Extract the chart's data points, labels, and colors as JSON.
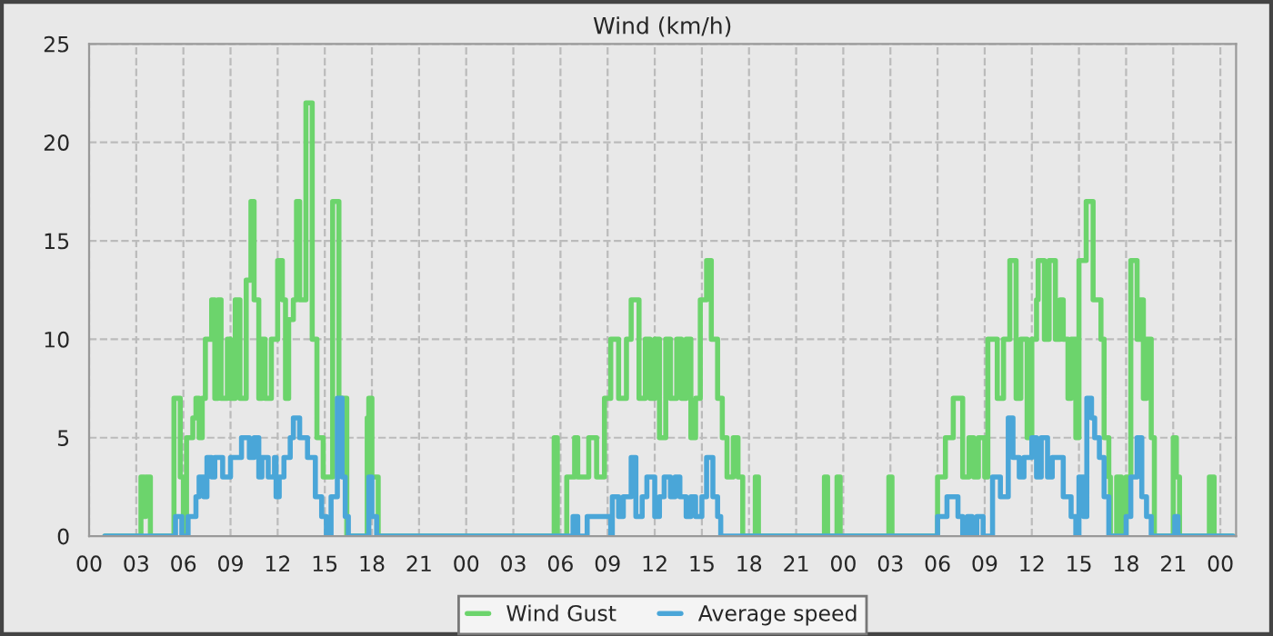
{
  "chart_data": {
    "type": "step",
    "title": "Wind (km/h)",
    "xlim": [
      0,
      73
    ],
    "ylim": [
      0,
      25
    ],
    "yticks": [
      0,
      5,
      10,
      15,
      20,
      25
    ],
    "xticks": [
      {
        "value": 0,
        "label": "00"
      },
      {
        "value": 3,
        "label": "03"
      },
      {
        "value": 6,
        "label": "06"
      },
      {
        "value": 9,
        "label": "09"
      },
      {
        "value": 12,
        "label": "12"
      },
      {
        "value": 15,
        "label": "15"
      },
      {
        "value": 18,
        "label": "18"
      },
      {
        "value": 21,
        "label": "21"
      },
      {
        "value": 24,
        "label": "00"
      },
      {
        "value": 27,
        "label": "03"
      },
      {
        "value": 30,
        "label": "06"
      },
      {
        "value": 33,
        "label": "09"
      },
      {
        "value": 36,
        "label": "12"
      },
      {
        "value": 39,
        "label": "15"
      },
      {
        "value": 42,
        "label": "18"
      },
      {
        "value": 45,
        "label": "21"
      },
      {
        "value": 48,
        "label": "00"
      },
      {
        "value": 51,
        "label": "03"
      },
      {
        "value": 54,
        "label": "06"
      },
      {
        "value": 57,
        "label": "09"
      },
      {
        "value": 60,
        "label": "12"
      },
      {
        "value": 63,
        "label": "15"
      },
      {
        "value": 66,
        "label": "18"
      },
      {
        "value": 69,
        "label": "21"
      },
      {
        "value": 72,
        "label": "00"
      }
    ],
    "grid": true,
    "legend": "bottom",
    "line_style": "solid",
    "marker": "none",
    "series": [
      {
        "name": "Wind Gust",
        "color": "#6cd46c",
        "x": [
          1,
          3.3,
          3.5,
          3.6,
          3.9,
          5.4,
          5.8,
          6.0,
          6.2,
          6.6,
          6.8,
          7.0,
          7.2,
          7.4,
          7.8,
          8.0,
          8.2,
          8.4,
          8.8,
          9.0,
          9.3,
          9.6,
          10.0,
          10.3,
          10.5,
          10.8,
          11.0,
          11.2,
          11.6,
          12.0,
          12.3,
          12.5,
          12.7,
          13.0,
          13.2,
          13.4,
          13.8,
          14.2,
          14.5,
          14.9,
          15.05,
          15.5,
          15.9,
          16.4,
          17.7,
          17.8,
          18.0,
          18.4,
          29.6,
          29.8,
          30.4,
          30.9,
          31.1,
          31.8,
          32.3,
          32.8,
          33.2,
          33.7,
          34.2,
          34.5,
          35.0,
          35.4,
          35.7,
          36.0,
          36.3,
          36.7,
          37.0,
          37.4,
          37.7,
          38.0,
          38.3,
          38.6,
          38.9,
          39.3,
          39.6,
          40.0,
          40.3,
          40.6,
          41.0,
          41.3,
          41.6,
          42.4,
          42.6,
          46.8,
          47.0,
          47.6,
          47.8,
          50.9,
          51.1,
          54.0,
          54.5,
          55.0,
          55.6,
          56.0,
          56.3,
          56.6,
          57.0,
          57.2,
          57.8,
          58.2,
          58.6,
          59.0,
          59.3,
          59.7,
          60.0,
          60.3,
          60.4,
          60.8,
          61.1,
          61.5,
          61.8,
          62.0,
          62.3,
          62.5,
          62.8,
          63.0,
          63.46,
          63.9,
          64.4,
          64.6,
          64.9,
          65.0,
          65.2,
          65.4,
          65.7,
          66.0,
          66.3,
          66.7,
          66.9,
          67.1,
          67.3,
          67.6,
          67.8,
          69.0,
          69.2,
          69.4,
          71.3,
          71.6,
          72.8
        ],
        "values": [
          0,
          3,
          1,
          3,
          0,
          7,
          3,
          0,
          5,
          6,
          7,
          5,
          7,
          10,
          12,
          7,
          12,
          7,
          10,
          7,
          12,
          7,
          13,
          17,
          12,
          7,
          10,
          7,
          10,
          14,
          12,
          7,
          11,
          12,
          17,
          12,
          22,
          10,
          5,
          3,
          3,
          17,
          7,
          0,
          6,
          7,
          3,
          0,
          5,
          0,
          3,
          5,
          3,
          5,
          3,
          7,
          10,
          7,
          10,
          12,
          7,
          10,
          7,
          10,
          5,
          10,
          7,
          10,
          7,
          10,
          5,
          7,
          12,
          14,
          10,
          7,
          5,
          3,
          5,
          3,
          0,
          3,
          0,
          3,
          0,
          3,
          0,
          3,
          0,
          3,
          5,
          7,
          3,
          5,
          3,
          5,
          3,
          10,
          7,
          10,
          14,
          7,
          10,
          5,
          10,
          12,
          14,
          10,
          14,
          10,
          12,
          10,
          7,
          10,
          5,
          14,
          17,
          12,
          10,
          5,
          3,
          0,
          0,
          3,
          0,
          3,
          14,
          10,
          12,
          7,
          10,
          5,
          0,
          5,
          3,
          0,
          3,
          0,
          0
        ]
      },
      {
        "name": "Average speed",
        "color": "#4aa6d8",
        "x": [
          1,
          5.5,
          5.9,
          6.3,
          6.8,
          7.0,
          7.3,
          7.5,
          7.8,
          8.0,
          8.5,
          9.0,
          9.7,
          10.2,
          10.5,
          10.8,
          11.0,
          11.4,
          11.8,
          11.9,
          12.1,
          12.4,
          12.8,
          13.0,
          13.4,
          13.9,
          14.4,
          14.8,
          15.1,
          15.4,
          15.8,
          16.1,
          16.3,
          16.5,
          17.8,
          18.0,
          18.3,
          30.8,
          31.1,
          31.7,
          33.2,
          33.3,
          33.7,
          34.0,
          34.5,
          34.8,
          35.2,
          35.5,
          36.0,
          36.3,
          36.6,
          37.0,
          37.3,
          37.6,
          38.0,
          38.3,
          38.6,
          39.0,
          39.3,
          39.7,
          40.0,
          40.2,
          54.0,
          54.6,
          55.3,
          55.6,
          55.9,
          56.2,
          56.5,
          56.9,
          57.5,
          58.0,
          58.5,
          58.8,
          59.2,
          59.5,
          60.0,
          60.3,
          60.6,
          61.0,
          61.3,
          62.0,
          62.5,
          62.8,
          63.0,
          63.3,
          63.5,
          63.8,
          64.0,
          64.3,
          64.6,
          64.9,
          66.0,
          66.3,
          66.7,
          67.0,
          67.3,
          67.6,
          69.1,
          69.3,
          72.8
        ],
        "values": [
          0,
          1,
          0,
          1,
          2,
          3,
          2,
          4,
          3,
          4,
          3,
          4,
          5,
          4,
          5,
          3,
          4,
          3,
          4,
          2,
          3,
          4,
          5,
          6,
          5,
          4,
          2,
          1,
          0,
          2,
          7,
          3,
          1,
          0,
          3,
          1,
          0,
          1,
          0,
          1,
          0,
          2,
          1,
          2,
          4,
          1,
          2,
          3,
          1,
          2,
          3,
          2,
          3,
          2,
          1,
          2,
          1,
          2,
          4,
          2,
          1,
          0,
          1,
          2,
          1,
          0,
          1,
          0,
          1,
          0,
          3,
          2,
          6,
          4,
          3,
          4,
          5,
          3,
          5,
          3,
          4,
          2,
          1,
          0,
          3,
          1,
          7,
          6,
          5,
          4,
          2,
          0,
          1,
          3,
          5,
          2,
          1,
          0,
          1,
          0,
          0
        ]
      }
    ]
  }
}
